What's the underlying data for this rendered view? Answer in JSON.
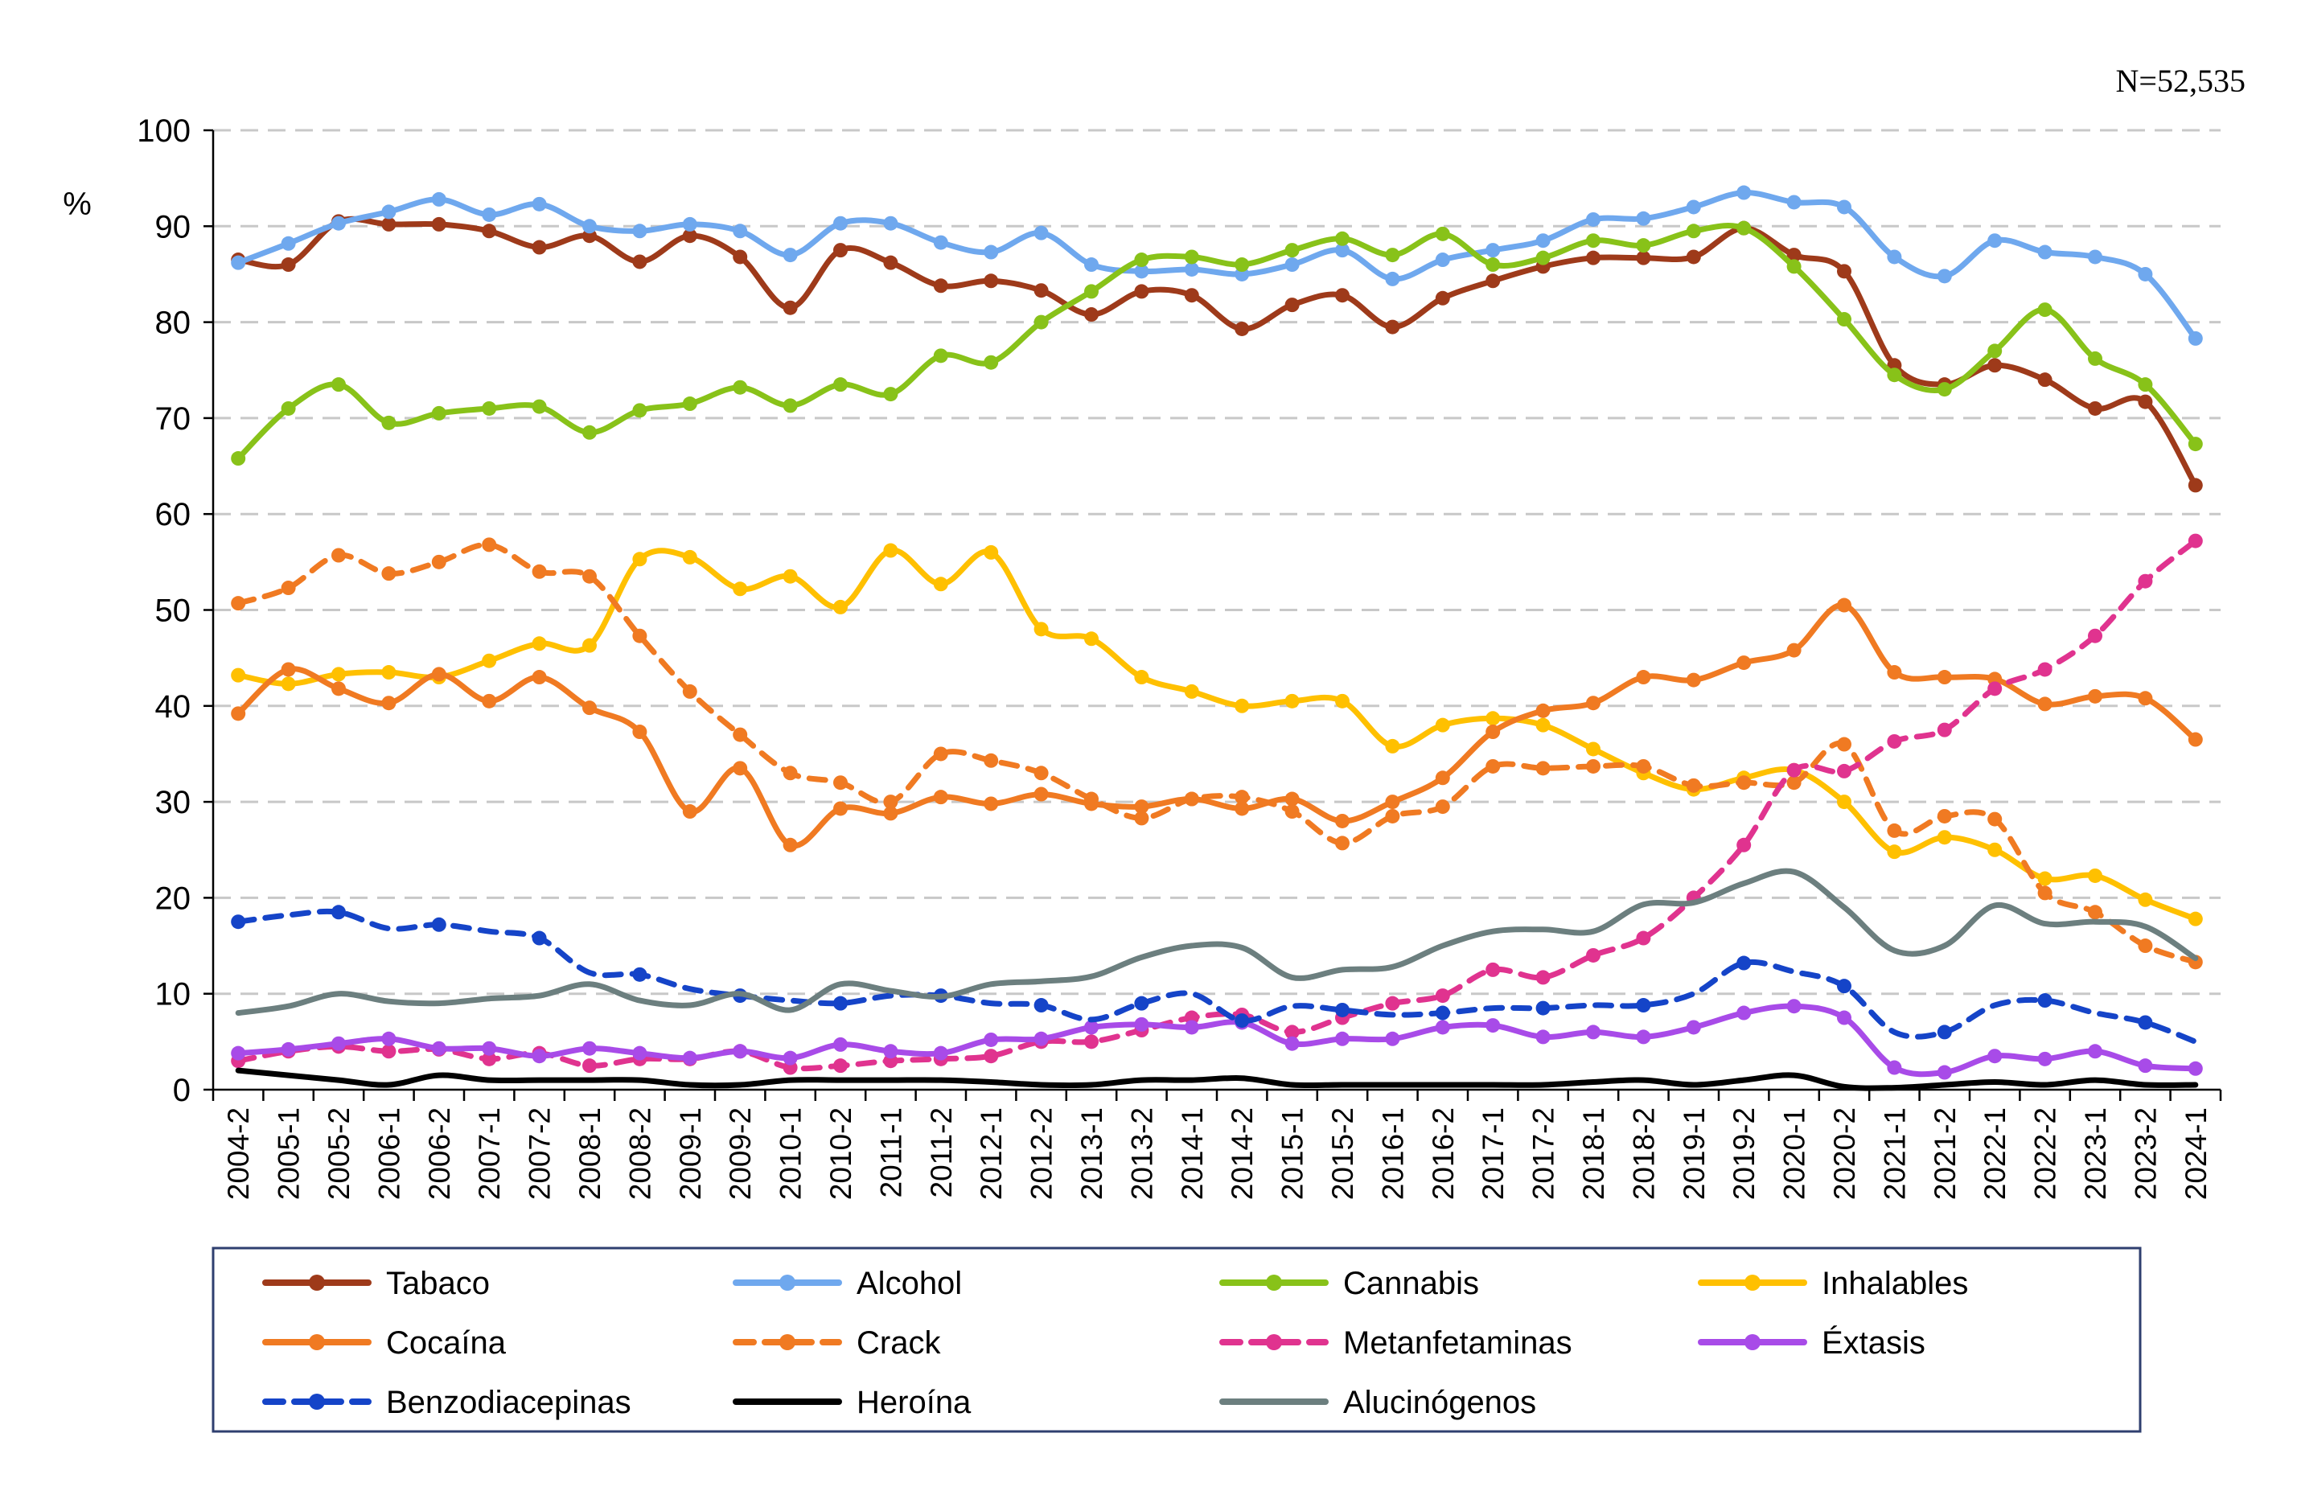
{
  "note": "N=52,535",
  "chart_data": {
    "type": "line",
    "title": "",
    "xlabel": "",
    "ylabel": "%",
    "ylim": [
      0,
      100
    ],
    "yticks": [
      0,
      10,
      20,
      30,
      40,
      50,
      60,
      70,
      80,
      90,
      100
    ],
    "grid": "horizontal dashed",
    "legend_placement": "bottom",
    "categories": [
      "2004-2",
      "2005-1",
      "2005-2",
      "2006-1",
      "2006-2",
      "2007-1",
      "2007-2",
      "2008-1",
      "2008-2",
      "2009-1",
      "2009-2",
      "2010-1",
      "2010-2",
      "2011-1",
      "2011-2",
      "2012-1",
      "2012-2",
      "2013-1",
      "2013-2",
      "2014-1",
      "2014-2",
      "2015-1",
      "2015-2",
      "2016-1",
      "2016-2",
      "2017-1",
      "2017-2",
      "2018-1",
      "2018-2",
      "2019-1",
      "2019-2",
      "2020-1",
      "2020-2",
      "2021-1",
      "2021-2",
      "2022-1",
      "2022-2",
      "2023-1",
      "2023-2",
      "2024-1"
    ],
    "series": [
      {
        "name": "Tabaco",
        "color": "#9E3A1A",
        "dash": "solid",
        "values": [
          86.5,
          86,
          90.5,
          90.2,
          90.2,
          89.5,
          87.8,
          89,
          86.3,
          89,
          86.8,
          81.5,
          87.5,
          86.2,
          83.8,
          84.3,
          83.3,
          80.8,
          83.2,
          82.8,
          79.3,
          81.8,
          82.8,
          79.5,
          82.5,
          84.3,
          85.8,
          86.7,
          86.7,
          86.8,
          89.8,
          87,
          85.3,
          75.5,
          73.5,
          75.5,
          74,
          71,
          71.7,
          63
        ]
      },
      {
        "name": "Alcohol",
        "color": "#6FA8EE",
        "dash": "solid",
        "values": [
          86.2,
          88.2,
          90.3,
          91.5,
          92.8,
          91.2,
          92.3,
          90,
          89.5,
          90.2,
          89.5,
          87,
          90.3,
          90.3,
          88.3,
          87.3,
          89.3,
          86,
          85.3,
          85.5,
          85,
          86,
          87.5,
          84.5,
          86.5,
          87.5,
          88.5,
          90.7,
          90.8,
          92,
          93.5,
          92.5,
          92,
          86.8,
          84.8,
          88.5,
          87.3,
          86.8,
          85,
          78.3
        ]
      },
      {
        "name": "Cannabis",
        "color": "#88C219",
        "dash": "solid",
        "values": [
          65.8,
          71,
          73.5,
          69.5,
          70.5,
          71,
          71.2,
          68.5,
          70.8,
          71.5,
          73.2,
          71.3,
          73.5,
          72.5,
          76.5,
          75.8,
          80,
          83.2,
          86.5,
          86.8,
          86,
          87.5,
          88.7,
          87,
          89.2,
          86,
          86.7,
          88.5,
          88,
          89.5,
          89.8,
          85.8,
          80.3,
          74.5,
          73,
          77,
          81.3,
          76.2,
          73.5,
          67.3
        ]
      },
      {
        "name": "Inhalables",
        "color": "#FFC000",
        "dash": "solid",
        "values": [
          43.2,
          42.3,
          43.3,
          43.5,
          43,
          44.7,
          46.5,
          46.3,
          55.3,
          55.5,
          52.2,
          53.5,
          50.3,
          56.2,
          52.7,
          56,
          48,
          47,
          43,
          41.5,
          40,
          40.5,
          40.5,
          35.8,
          38,
          38.7,
          38,
          35.5,
          33,
          31.3,
          32.5,
          33.3,
          30,
          24.8,
          26.3,
          25,
          22,
          22.3,
          19.8,
          17.8
        ]
      },
      {
        "name": "Cocaína",
        "color": "#F07A22",
        "dash": "solid",
        "values": [
          39.2,
          43.8,
          41.8,
          40.3,
          43.3,
          40.5,
          43,
          39.8,
          37.3,
          29,
          33.5,
          25.5,
          29.3,
          28.8,
          30.5,
          29.8,
          30.8,
          29.8,
          29.5,
          30.3,
          29.3,
          30.3,
          28,
          30,
          32.5,
          37.3,
          39.5,
          40.3,
          43,
          42.7,
          44.5,
          45.8,
          50.5,
          43.5,
          43,
          42.8,
          40.2,
          41,
          40.8,
          36.5
        ]
      },
      {
        "name": "Crack",
        "color": "#F07A22",
        "dash": "dashed",
        "values": [
          50.7,
          52.3,
          55.7,
          53.8,
          55,
          56.8,
          54,
          53.5,
          47.3,
          41.5,
          37,
          33,
          32,
          30,
          35,
          34.3,
          33,
          30.3,
          28.3,
          30.3,
          30.5,
          29,
          25.7,
          28.5,
          29.5,
          33.7,
          33.5,
          33.7,
          33.7,
          31.7,
          32,
          32,
          36,
          27,
          28.5,
          28.2,
          20.5,
          18.5,
          15,
          13.3
        ]
      },
      {
        "name": "Metanfetaminas",
        "color": "#E0338F",
        "dash": "dashed",
        "values": [
          3,
          4,
          4.5,
          4,
          4.2,
          3.2,
          3.8,
          2.5,
          3.2,
          3.2,
          4,
          2.3,
          2.5,
          3,
          3.2,
          3.5,
          5,
          5,
          6.2,
          7.5,
          7.8,
          6,
          7.5,
          9,
          9.8,
          12.5,
          11.7,
          14,
          15.8,
          20,
          25.5,
          33.3,
          33.2,
          36.3,
          37.5,
          41.8,
          43.8,
          47.3,
          53,
          57.2
        ]
      },
      {
        "name": "Éxtasis",
        "color": "#A84BE8",
        "dash": "solid",
        "values": [
          3.8,
          4.2,
          4.8,
          5.3,
          4.3,
          4.3,
          3.5,
          4.3,
          3.8,
          3.3,
          4,
          3.3,
          4.7,
          4,
          3.8,
          5.2,
          5.3,
          6.5,
          6.8,
          6.5,
          7,
          4.8,
          5.3,
          5.3,
          6.5,
          6.7,
          5.5,
          6,
          5.5,
          6.5,
          8,
          8.7,
          7.5,
          2.3,
          1.8,
          3.5,
          3.2,
          4,
          2.5,
          2.2
        ]
      },
      {
        "name": "Benzodiacepinas",
        "color": "#1544C8",
        "dash": "dashed",
        "values": [
          17.5,
          18.2,
          18.5,
          16.8,
          17.2,
          16.5,
          15.8,
          12.2,
          12,
          10.5,
          9.8,
          9.3,
          9,
          9.8,
          9.8,
          9,
          8.8,
          7.3,
          9,
          10,
          7.2,
          8.7,
          8.3,
          7.8,
          8,
          8.5,
          8.5,
          8.8,
          8.8,
          10,
          13.2,
          12.3,
          10.8,
          6,
          6,
          8.8,
          9.3,
          8,
          7,
          5
        ]
      },
      {
        "name": "Heroína",
        "color": "#000000",
        "dash": "solid",
        "values": [
          2,
          1.5,
          1,
          0.5,
          1.5,
          1,
          1,
          1,
          1,
          0.5,
          0.5,
          1,
          1,
          1,
          1,
          0.8,
          0.5,
          0.5,
          1,
          1,
          1.2,
          0.5,
          0.5,
          0.5,
          0.5,
          0.5,
          0.5,
          0.8,
          1,
          0.5,
          1,
          1.5,
          0.3,
          0.2,
          0.5,
          0.8,
          0.5,
          1,
          0.5,
          0.5
        ]
      },
      {
        "name": "Alucinógenos",
        "color": "#6C7F7F",
        "dash": "solid",
        "values": [
          8,
          8.7,
          10,
          9.2,
          9,
          9.5,
          9.8,
          11,
          9.3,
          8.8,
          10,
          8.3,
          11,
          10.3,
          9.7,
          11,
          11.3,
          11.8,
          13.8,
          15,
          14.8,
          11.7,
          12.5,
          12.8,
          15,
          16.5,
          16.7,
          16.5,
          19.3,
          19.5,
          21.5,
          22.7,
          19,
          14.5,
          15,
          19.2,
          17.3,
          17.5,
          17,
          13.7
        ]
      }
    ]
  }
}
